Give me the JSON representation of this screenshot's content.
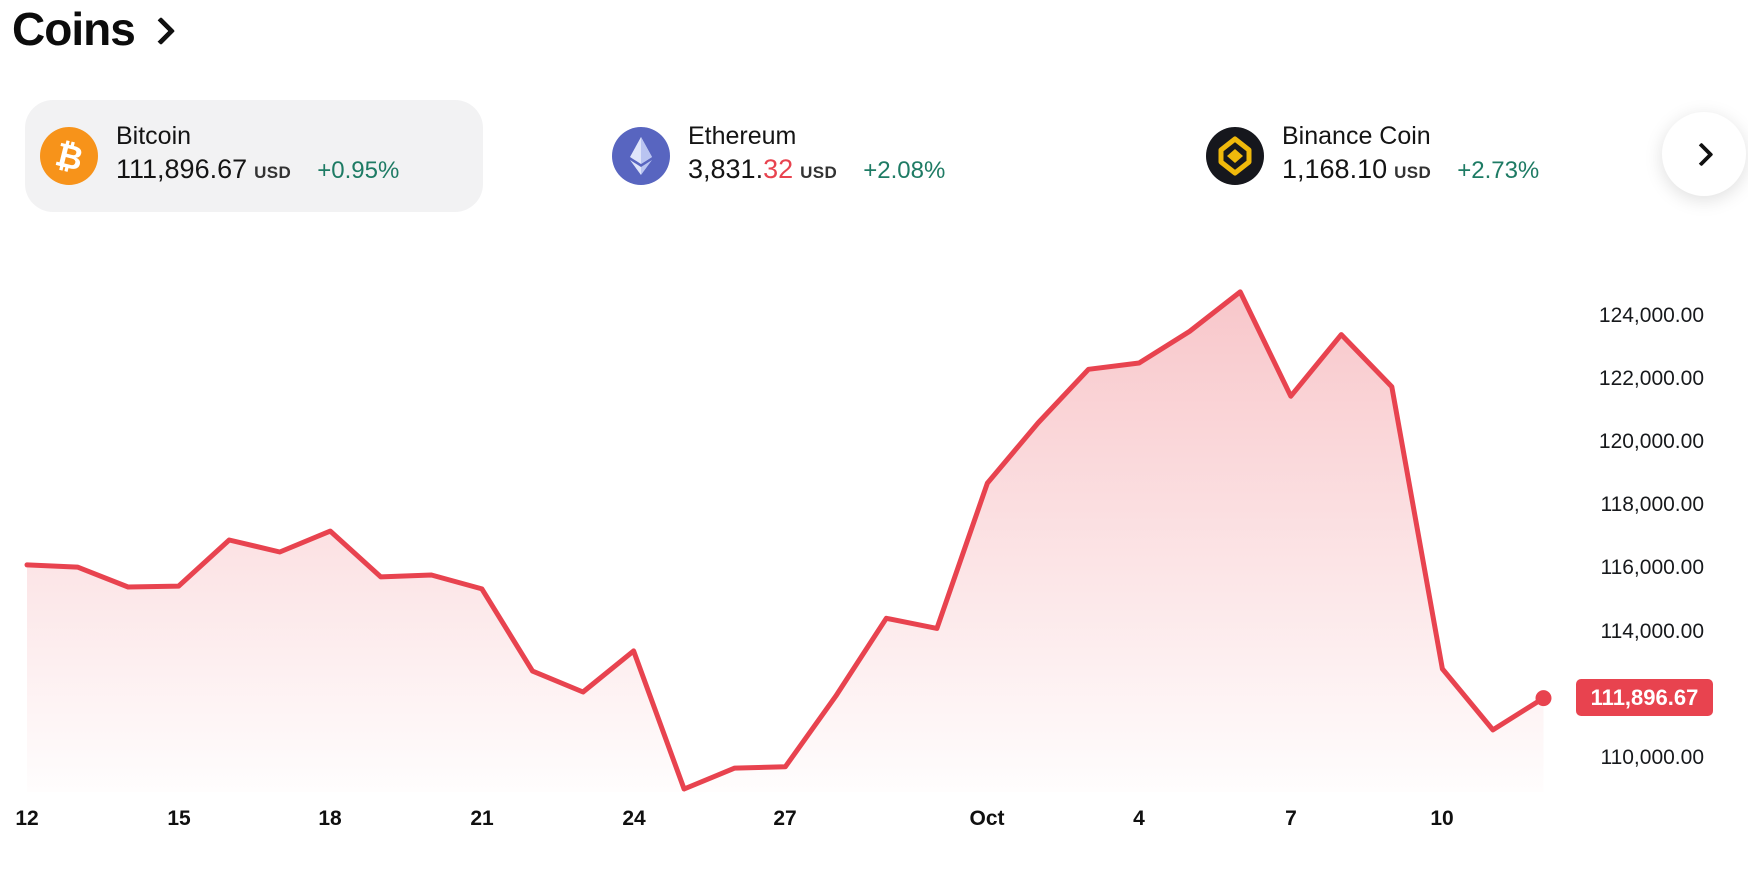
{
  "page": {
    "title": "Coins"
  },
  "colors": {
    "accent_red": "#e8434f",
    "positive_green": "#1e7b64",
    "bitcoin_orange": "#f7931a",
    "ethereum_blue": "#5865c0",
    "bnb_dark": "#16171d",
    "bnb_gold": "#f0b90b",
    "selected_card_bg": "#f2f2f3"
  },
  "cards": {
    "bitcoin": {
      "name": "Bitcoin",
      "price": "111,896.67",
      "price_accent": "",
      "currency": "USD",
      "change": "+0.95%"
    },
    "ethereum": {
      "name": "Ethereum",
      "price": "3,831.",
      "price_accent": "32",
      "currency": "USD",
      "change": "+2.08%"
    },
    "binance": {
      "name": "Binance Coin",
      "price": "1,168.10",
      "price_accent": "",
      "currency": "USD",
      "change": "+2.73%"
    }
  },
  "chart_data": {
    "type": "area",
    "series_name": "Bitcoin price (USD)",
    "x": [
      "Sep 12",
      "Sep 13",
      "Sep 14",
      "Sep 15",
      "Sep 16",
      "Sep 17",
      "Sep 18",
      "Sep 19",
      "Sep 20",
      "Sep 21",
      "Sep 22",
      "Sep 23",
      "Sep 24",
      "Sep 25",
      "Sep 26",
      "Sep 27",
      "Sep 28",
      "Sep 29",
      "Sep 30",
      "Oct 1",
      "Oct 2",
      "Oct 3",
      "Oct 4",
      "Oct 5",
      "Oct 6",
      "Oct 7",
      "Oct 8",
      "Oct 9",
      "Oct 10",
      "Oct 11",
      "Oct 12"
    ],
    "values": [
      116110,
      116040,
      115410,
      115440,
      116900,
      116520,
      117180,
      115730,
      115790,
      115350,
      112750,
      112090,
      113390,
      109020,
      109680,
      109720,
      111960,
      114420,
      114100,
      118700,
      120600,
      122300,
      122500,
      123500,
      124750,
      121450,
      123400,
      121750,
      112820,
      110890,
      111896.67
    ],
    "current_value": 111896.67,
    "last_price_label": "111,896.67",
    "ylim": [
      108900,
      126000
    ],
    "grid": false,
    "legend": false,
    "y_ticks": [
      {
        "value": 124000,
        "label": "124,000.00"
      },
      {
        "value": 122000,
        "label": "122,000.00"
      },
      {
        "value": 120000,
        "label": "120,000.00"
      },
      {
        "value": 118000,
        "label": "118,000.00"
      },
      {
        "value": 116000,
        "label": "116,000.00"
      },
      {
        "value": 114000,
        "label": "114,000.00"
      },
      {
        "value": 110000,
        "label": "110,000.00"
      }
    ],
    "x_ticks": [
      {
        "index": 0,
        "label": "12"
      },
      {
        "index": 3,
        "label": "15"
      },
      {
        "index": 6,
        "label": "18"
      },
      {
        "index": 9,
        "label": "21"
      },
      {
        "index": 12,
        "label": "24"
      },
      {
        "index": 15,
        "label": "27"
      },
      {
        "index": 19,
        "label": "Oct"
      },
      {
        "index": 22,
        "label": "4"
      },
      {
        "index": 25,
        "label": "7"
      },
      {
        "index": 28,
        "label": "10"
      }
    ]
  }
}
